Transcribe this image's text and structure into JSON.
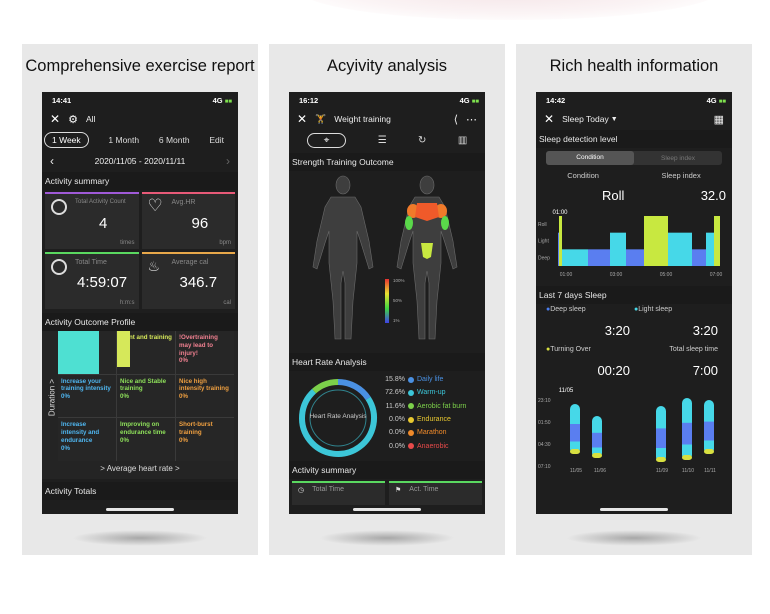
{
  "panel1": {
    "caption": "Comprehensive exercise report",
    "status": {
      "time": "14:41",
      "signal": "4G"
    },
    "header": {
      "filter": "All"
    },
    "tabs": [
      "1 Week",
      "1 Month",
      "6 Month",
      "Edit"
    ],
    "date_range": "2020/11/05 - 2020/11/11",
    "activity_summary_title": "Activity summary",
    "stats": [
      {
        "label": "Total Activity Count",
        "value": "4",
        "unit": "times"
      },
      {
        "label": "Avg.HR",
        "value": "96",
        "unit": "bpm"
      },
      {
        "label": "Total Time",
        "value": "4:59:07",
        "unit": "h:m:s"
      },
      {
        "label": "Average cal",
        "value": "346.7",
        "unit": "cal"
      }
    ],
    "profile_title": "Activity Outcome Profile",
    "y_axis": "Duration >",
    "x_axis": "> Average heart rate >",
    "profile_cells": [
      {
        "title": "",
        "pct": "",
        "color": "#4ee0d2",
        "text": "#4ee0d2"
      },
      {
        "title": "ment and training",
        "pct": "",
        "color": "#d6e85a",
        "text": "#d6e85a"
      },
      {
        "title": "!Overtraining may lead to injury!",
        "pct": "0%",
        "color": "",
        "text": "#f08090"
      },
      {
        "title": "Increase your training intensity",
        "pct": "0%",
        "color": "",
        "text": "#4fb6f0"
      },
      {
        "title": "Nice and Stable training",
        "pct": "0%",
        "color": "",
        "text": "#8ee05a"
      },
      {
        "title": "Nice high intensity training",
        "pct": "0%",
        "color": "",
        "text": "#f0a040"
      },
      {
        "title": "Increase intensity and endurance",
        "pct": "0%",
        "color": "",
        "text": "#4fb6f0"
      },
      {
        "title": "Improving on endurance time",
        "pct": "0%",
        "color": "",
        "text": "#8ee05a"
      },
      {
        "title": "Short-burst training",
        "pct": "0%",
        "color": "",
        "text": "#f0a040"
      }
    ],
    "totals_title": "Activity Totals"
  },
  "panel2": {
    "caption": "Acyivity analysis",
    "status": {
      "time": "16:12",
      "signal": "4G"
    },
    "header": {
      "title": "Weight training"
    },
    "outcome_title": "Strength Training Outcome",
    "legend_scale": [
      "100%",
      "50%",
      "1%"
    ],
    "hr_title": "Heart Rate Analysis",
    "donut_label": "Heart Rate Analysis",
    "zones": [
      {
        "pct": "15.8%",
        "name": "Daily life",
        "color": "#4a90e2"
      },
      {
        "pct": "72.6%",
        "name": "Warm-up",
        "color": "#3cc6d8"
      },
      {
        "pct": "11.6%",
        "name": "Aerobic fat burn",
        "color": "#7cd04a"
      },
      {
        "pct": "0.0%",
        "name": "Endurance",
        "color": "#e8c830"
      },
      {
        "pct": "0.0%",
        "name": "Marathon",
        "color": "#f08a2a"
      },
      {
        "pct": "0.0%",
        "name": "Anaerobic",
        "color": "#e84a4a"
      }
    ],
    "summary_title": "Activity summary",
    "summary_items": [
      "Total Time",
      "Act. Time"
    ]
  },
  "panel3": {
    "caption": "Rich health information",
    "status": {
      "time": "14:42",
      "signal": "4G"
    },
    "header": {
      "title": "Sleep Today"
    },
    "detect_title": "Sleep detection level",
    "seg_tabs": [
      "Condition",
      "Sleep index"
    ],
    "labels": [
      "Condition",
      "Sleep index"
    ],
    "values": [
      "Roll",
      "32.0"
    ],
    "chart_marker": "01:00",
    "levels": [
      "Roll",
      "Light",
      "Deep"
    ],
    "times": [
      "01:00",
      "03:00",
      "05:00",
      "07:00"
    ],
    "week_title": "Last 7 days Sleep",
    "stats": [
      {
        "label": "Deep sleep",
        "value": "3:20",
        "dot": "#4a7ef0"
      },
      {
        "label": "Light sleep",
        "value": "3:20",
        "dot": "#46d8e8"
      },
      {
        "label": "Turning Over",
        "value": "00:20",
        "dot": "#d8e040"
      },
      {
        "label": "Total sleep time",
        "value": "7:00",
        "dot": ""
      }
    ],
    "week_marker": "11/05",
    "week_y": [
      "23:10",
      "01:50",
      "04:30",
      "07:10"
    ],
    "week_x": [
      "11/05",
      "11/06",
      "11/09",
      "11/10",
      "11/11"
    ]
  },
  "chart_data": [
    {
      "type": "heatmap",
      "title": "Activity Outcome Profile",
      "xlabel": "> Average heart rate >",
      "ylabel": "Duration >",
      "cells_pct": [
        [
          "",
          "",
          "0%"
        ],
        [
          "0%",
          "0%",
          "0%"
        ],
        [
          "0%",
          "0%",
          "0%"
        ]
      ]
    },
    {
      "type": "pie",
      "title": "Heart Rate Analysis",
      "categories": [
        "Daily life",
        "Warm-up",
        "Aerobic fat burn",
        "Endurance",
        "Marathon",
        "Anaerobic"
      ],
      "values": [
        15.8,
        72.6,
        11.6,
        0.0,
        0.0,
        0.0
      ]
    },
    {
      "type": "bar",
      "title": "Sleep detection level",
      "categories": [
        "Roll",
        "Light",
        "Deep"
      ],
      "x": [
        "01:00",
        "03:00",
        "05:00",
        "07:00"
      ]
    },
    {
      "type": "bar",
      "title": "Last 7 days Sleep",
      "categories": [
        "11/05",
        "11/06",
        "11/09",
        "11/10",
        "11/11"
      ],
      "y_ticks": [
        "23:10",
        "01:50",
        "04:30",
        "07:10"
      ]
    }
  ]
}
